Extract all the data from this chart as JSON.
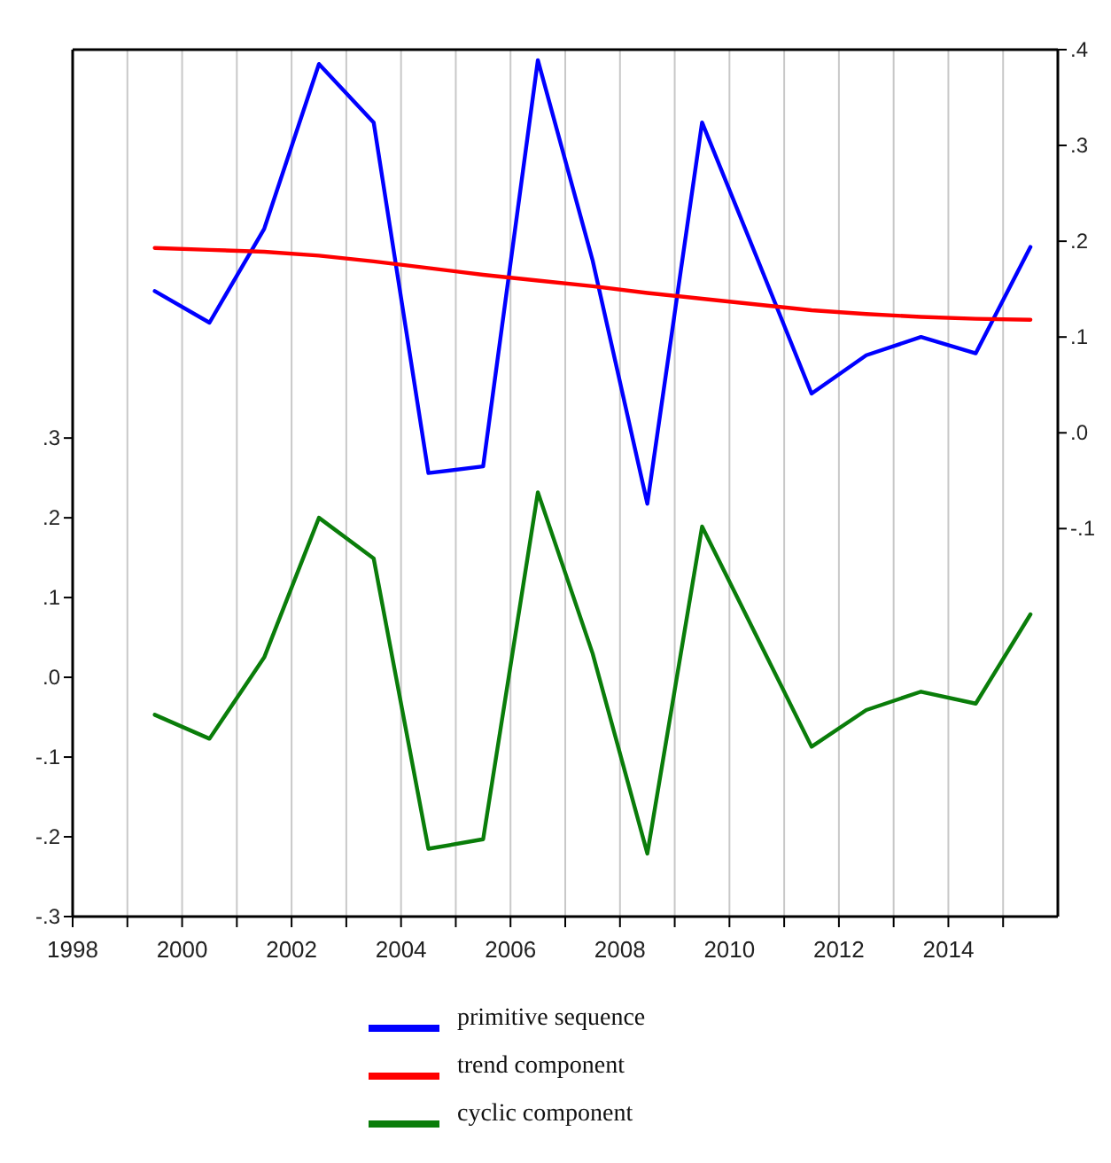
{
  "chart_data": {
    "type": "line",
    "xlim": [
      1998,
      2016
    ],
    "xticks": [
      {
        "value": 1998,
        "label": "1998"
      },
      {
        "value": 1999,
        "label": null
      },
      {
        "value": 2000,
        "label": "2000"
      },
      {
        "value": 2001,
        "label": null
      },
      {
        "value": 2002,
        "label": "2002"
      },
      {
        "value": 2003,
        "label": null
      },
      {
        "value": 2004,
        "label": "2004"
      },
      {
        "value": 2005,
        "label": null
      },
      {
        "value": 2006,
        "label": "2006"
      },
      {
        "value": 2007,
        "label": null
      },
      {
        "value": 2008,
        "label": "2008"
      },
      {
        "value": 2009,
        "label": null
      },
      {
        "value": 2010,
        "label": "2010"
      },
      {
        "value": 2011,
        "label": null
      },
      {
        "value": 2012,
        "label": "2012"
      },
      {
        "value": 2013,
        "label": null
      },
      {
        "value": 2014,
        "label": "2014"
      },
      {
        "value": 2015,
        "label": null
      }
    ],
    "x": [
      1999.5,
      2000.5,
      2001.5,
      2002.5,
      2003.5,
      2004.5,
      2005.5,
      2006.5,
      2007.5,
      2008.5,
      2009.5,
      2010.5,
      2011.5,
      2012.5,
      2013.5,
      2014.5,
      2015.5
    ],
    "ylim": [
      -0.3,
      0.787
    ],
    "yticks": [
      {
        "value": -0.3,
        "label": "-.3"
      },
      {
        "value": -0.2,
        "label": "-.2"
      },
      {
        "value": -0.1,
        "label": "-.1"
      },
      {
        "value": 0,
        "label": ".0"
      },
      {
        "value": 0.1,
        "label": ".1"
      },
      {
        "value": 0.2,
        "label": ".2"
      },
      {
        "value": 0.3,
        "label": ".3"
      }
    ],
    "y2lim": [
      -0.505,
      0.4
    ],
    "y2ticks": [
      {
        "value": -0.1,
        "label": "-.1"
      },
      {
        "value": 0,
        "label": ".0"
      },
      {
        "value": 0.1,
        "label": ".1"
      },
      {
        "value": 0.2,
        "label": ".2"
      },
      {
        "value": 0.3,
        "label": ".3"
      },
      {
        "value": 0.4,
        "label": ".4"
      }
    ],
    "grid": "x",
    "legend": "bottom",
    "line_style": "solid",
    "series": [
      {
        "name": "primitive sequence",
        "color": "#0000ff",
        "axis": "y2",
        "values": [
          0.148,
          0.115,
          0.213,
          0.385,
          0.324,
          -0.042,
          -0.035,
          0.389,
          0.18,
          -0.074,
          0.324,
          0.183,
          0.041,
          0.081,
          0.1,
          0.083,
          0.194
        ]
      },
      {
        "name": "trend component",
        "color": "#ff0000",
        "axis": "y2",
        "values": [
          0.193,
          0.191,
          0.189,
          0.185,
          0.179,
          0.172,
          0.165,
          0.159,
          0.153,
          0.146,
          0.14,
          0.134,
          0.128,
          0.124,
          0.121,
          0.119,
          0.118
        ]
      },
      {
        "name": "cyclic component",
        "color": "#0a7d0a",
        "axis": "y",
        "values": [
          -0.047,
          -0.077,
          0.025,
          0.2,
          0.149,
          -0.215,
          -0.203,
          0.232,
          0.03,
          -0.221,
          0.189,
          0.051,
          -0.087,
          -0.041,
          -0.018,
          -0.033,
          0.079
        ]
      }
    ]
  }
}
